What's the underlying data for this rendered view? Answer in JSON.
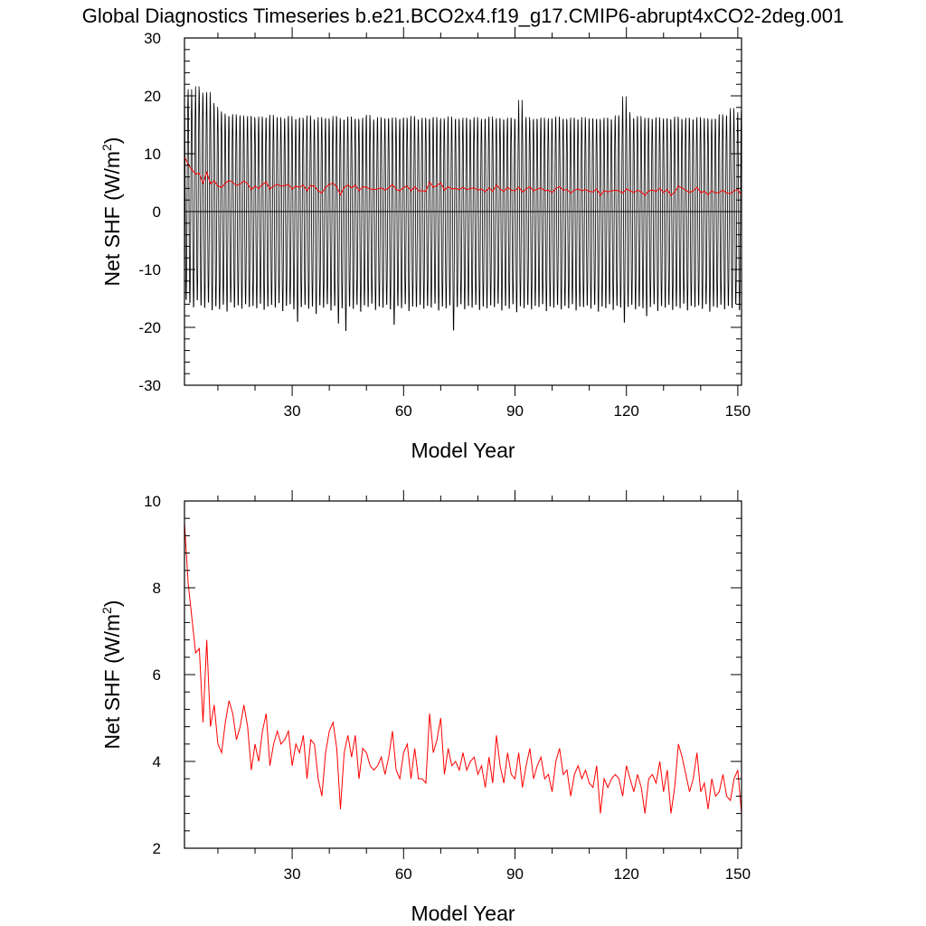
{
  "title": "Global Diagnostics Timeseries b.e21.BCO2x4.f19_g17.CMIP6-abrupt4xCO2-2deg.001",
  "colors": {
    "monthly": "#000000",
    "annual": "#ff0000"
  },
  "chart_data": [
    {
      "type": "line",
      "xlabel": "Model Year",
      "ylabel_main": "Net SHF (W/m",
      "ylabel_sup": "2",
      "ylabel_tail": ")",
      "xlim": [
        1,
        151
      ],
      "ylim": [
        -30,
        30
      ],
      "xticks": [
        30,
        60,
        90,
        120,
        150
      ],
      "yticks": [
        -30,
        -20,
        -10,
        0,
        10,
        20,
        30
      ],
      "reference_line": 0,
      "series": [
        {
          "kind": "monthly-seasonal-cycle",
          "x_start": 1,
          "years": 151,
          "annual_max": [
            20.6,
            21.8,
            19.7,
            22.3,
            21.2,
            20.4,
            21.3,
            19.4,
            18.7,
            17.9,
            17.5,
            17.1,
            16.9,
            17.4,
            16.8,
            17.2,
            16.5,
            17.1,
            16.9,
            16.4,
            17.0,
            16.6,
            16.8,
            17.3,
            16.5,
            16.9,
            16.2,
            16.7,
            17.1,
            16.4,
            16.6,
            16.8,
            16.3,
            17.2,
            16.5,
            16.1,
            16.9,
            16.4,
            16.7,
            16.2,
            17.1,
            16.8,
            16.3,
            16.5,
            17.0,
            16.4,
            16.6,
            16.2,
            16.8,
            17.3,
            16.5,
            16.1,
            16.9,
            16.3,
            16.7,
            16.4,
            16.9,
            16.2,
            16.6,
            16.8,
            16.3,
            17.1,
            16.5,
            16.2,
            16.8,
            16.4,
            16.6,
            16.9,
            16.3,
            16.7,
            16.1,
            17.0,
            16.4,
            16.6,
            16.2,
            16.8,
            16.5,
            16.3,
            16.9,
            16.1,
            16.6,
            16.4,
            17.0,
            16.2,
            16.7,
            16.5,
            16.3,
            16.8,
            16.6,
            16.4,
            19.9,
            16.5,
            16.9,
            16.2,
            16.6,
            16.4,
            16.8,
            16.1,
            16.7,
            16.3,
            17.0,
            16.4,
            16.6,
            16.2,
            16.8,
            16.5,
            16.3,
            16.9,
            16.1,
            16.7,
            16.4,
            16.6,
            16.2,
            16.8,
            16.5,
            16.3,
            17.2,
            16.9,
            20.6,
            17.8,
            16.7,
            16.5,
            17.1,
            16.4,
            16.8,
            16.6,
            16.3,
            16.9,
            16.2,
            16.7,
            16.5,
            16.4,
            17.0,
            16.6,
            16.3,
            16.8,
            16.5,
            16.2,
            16.9,
            16.4,
            16.7,
            16.3,
            16.6,
            16.5,
            17.4,
            16.8,
            17.2,
            18.5,
            16.7,
            17.8,
            18.1
          ],
          "annual_min": [
            -15.8,
            -16.4,
            -17.1,
            -15.9,
            -16.8,
            -17.2,
            -16.3,
            -17.6,
            -16.9,
            -17.4,
            -16.6,
            -17.8,
            -16.2,
            -17.1,
            -16.7,
            -17.3,
            -16.5,
            -17.0,
            -16.8,
            -17.2,
            -16.4,
            -17.5,
            -16.9,
            -16.6,
            -17.1,
            -16.3,
            -17.7,
            -16.8,
            -16.5,
            -17.4,
            -19.6,
            -17.0,
            -16.6,
            -17.3,
            -16.9,
            -18.2,
            -16.7,
            -17.1,
            -16.5,
            -17.6,
            -16.8,
            -19.9,
            -17.2,
            -21.2,
            -16.9,
            -17.3,
            -16.6,
            -17.8,
            -16.7,
            -17.0,
            -16.4,
            -17.5,
            -16.9,
            -17.1,
            -16.6,
            -17.4,
            -20.1,
            -16.8,
            -17.2,
            -16.5,
            -17.7,
            -16.9,
            -17.0,
            -16.6,
            -17.3,
            -16.8,
            -17.1,
            -16.4,
            -17.6,
            -16.9,
            -17.2,
            -16.7,
            -21.1,
            -17.0,
            -16.5,
            -17.4,
            -16.8,
            -17.1,
            -16.6,
            -17.5,
            -16.9,
            -17.2,
            -16.7,
            -17.0,
            -16.4,
            -17.6,
            -16.8,
            -17.3,
            -16.5,
            -17.9,
            -16.9,
            -17.2,
            -16.6,
            -17.4,
            -16.8,
            -17.0,
            -16.5,
            -17.7,
            -16.9,
            -17.1,
            -16.6,
            -17.4,
            -16.8,
            -17.2,
            -16.5,
            -17.6,
            -16.9,
            -17.0,
            -16.7,
            -17.3,
            -16.6,
            -17.8,
            -16.9,
            -17.2,
            -16.5,
            -17.5,
            -16.8,
            -17.1,
            -19.8,
            -17.0,
            -16.6,
            -17.4,
            -16.9,
            -17.2,
            -18.6,
            -17.0,
            -16.5,
            -17.7,
            -16.8,
            -17.1,
            -16.6,
            -17.5,
            -16.9,
            -17.2,
            -16.4,
            -17.6,
            -16.8,
            -17.0,
            -16.7,
            -17.3,
            -16.5,
            -17.8,
            -16.9,
            -17.1,
            -16.6,
            -17.4,
            -16.8,
            -17.2,
            -16.5,
            -17.6,
            -19.4
          ]
        },
        {
          "kind": "annual-mean",
          "x_start": 1,
          "values": [
            9.5,
            8.1,
            7.3,
            6.5,
            6.6,
            4.9,
            6.8,
            4.8,
            5.3,
            4.4,
            4.2,
            4.9,
            5.4,
            5.1,
            4.5,
            4.8,
            5.3,
            4.8,
            3.8,
            4.4,
            4.0,
            4.7,
            5.1,
            3.9,
            4.4,
            4.7,
            4.4,
            4.5,
            4.7,
            3.9,
            4.4,
            4.2,
            4.6,
            3.6,
            4.5,
            4.4,
            3.6,
            3.2,
            4.2,
            4.7,
            4.9,
            4.3,
            2.9,
            4.2,
            4.6,
            4.1,
            4.6,
            3.6,
            4.3,
            4.2,
            3.9,
            3.8,
            3.9,
            4.1,
            3.7,
            4.1,
            4.7,
            3.8,
            3.6,
            4.2,
            4.4,
            3.6,
            4.3,
            3.6,
            3.6,
            3.5,
            5.1,
            4.2,
            4.5,
            5.0,
            3.7,
            4.3,
            3.9,
            4.0,
            3.8,
            4.2,
            3.8,
            4.0,
            4.1,
            3.7,
            3.9,
            3.4,
            4.1,
            3.5,
            4.6,
            3.9,
            3.5,
            4.2,
            3.7,
            3.6,
            4.2,
            3.4,
            3.9,
            4.3,
            3.6,
            3.9,
            4.1,
            3.6,
            3.7,
            3.3,
            4.0,
            4.3,
            3.7,
            3.8,
            3.2,
            3.7,
            3.9,
            3.6,
            3.8,
            3.5,
            3.4,
            3.9,
            2.8,
            3.6,
            3.4,
            3.6,
            3.7,
            3.6,
            3.2,
            3.9,
            3.6,
            3.3,
            3.7,
            3.4,
            2.8,
            3.6,
            3.7,
            3.5,
            4.0,
            3.3,
            3.8,
            2.8,
            3.4,
            4.4,
            4.1,
            3.7,
            3.3,
            3.6,
            4.2,
            3.3,
            3.5,
            2.9,
            3.6,
            3.2,
            3.3,
            3.7,
            3.2,
            3.1,
            3.6,
            3.8,
            2.8
          ]
        }
      ]
    },
    {
      "type": "line",
      "xlabel": "Model Year",
      "ylabel_main": "Net SHF (W/m",
      "ylabel_sup": "2",
      "ylabel_tail": ")",
      "xlim": [
        1,
        151
      ],
      "ylim": [
        2,
        10
      ],
      "xticks": [
        30,
        60,
        90,
        120,
        150
      ],
      "yticks": [
        2,
        4,
        6,
        8,
        10
      ],
      "series": [
        {
          "kind": "annual-mean",
          "x_start": 1,
          "values": [
            9.5,
            8.1,
            7.3,
            6.5,
            6.6,
            4.9,
            6.8,
            4.8,
            5.3,
            4.4,
            4.2,
            4.9,
            5.4,
            5.1,
            4.5,
            4.8,
            5.3,
            4.8,
            3.8,
            4.4,
            4.0,
            4.7,
            5.1,
            3.9,
            4.4,
            4.7,
            4.4,
            4.5,
            4.7,
            3.9,
            4.4,
            4.2,
            4.6,
            3.6,
            4.5,
            4.4,
            3.6,
            3.2,
            4.2,
            4.7,
            4.9,
            4.3,
            2.9,
            4.2,
            4.6,
            4.1,
            4.6,
            3.6,
            4.3,
            4.2,
            3.9,
            3.8,
            3.9,
            4.1,
            3.7,
            4.1,
            4.7,
            3.8,
            3.6,
            4.2,
            4.4,
            3.6,
            4.3,
            3.6,
            3.6,
            3.5,
            5.1,
            4.2,
            4.5,
            5.0,
            3.7,
            4.3,
            3.9,
            4.0,
            3.8,
            4.2,
            3.8,
            4.0,
            4.1,
            3.7,
            3.9,
            3.4,
            4.1,
            3.5,
            4.6,
            3.9,
            3.5,
            4.2,
            3.7,
            3.6,
            4.2,
            3.4,
            3.9,
            4.3,
            3.6,
            3.9,
            4.1,
            3.6,
            3.7,
            3.3,
            4.0,
            4.3,
            3.7,
            3.8,
            3.2,
            3.7,
            3.9,
            3.6,
            3.8,
            3.5,
            3.4,
            3.9,
            2.8,
            3.6,
            3.4,
            3.6,
            3.7,
            3.6,
            3.2,
            3.9,
            3.6,
            3.3,
            3.7,
            3.4,
            2.8,
            3.6,
            3.7,
            3.5,
            4.0,
            3.3,
            3.8,
            2.8,
            3.4,
            4.4,
            4.1,
            3.7,
            3.3,
            3.6,
            4.2,
            3.3,
            3.5,
            2.9,
            3.6,
            3.2,
            3.3,
            3.7,
            3.2,
            3.1,
            3.6,
            3.8,
            2.8
          ]
        }
      ]
    }
  ]
}
